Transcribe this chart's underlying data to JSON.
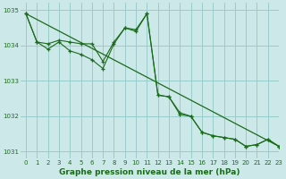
{
  "title": "Graphe pression niveau de la mer (hPa)",
  "bg_color": "#cce8e8",
  "grid_color": "#99cccc",
  "line_color": "#1a6b1a",
  "xlim": [
    -0.5,
    23
  ],
  "ylim": [
    1030.8,
    1035.2
  ],
  "yticks": [
    1031,
    1032,
    1033,
    1034,
    1035
  ],
  "xticks": [
    0,
    1,
    2,
    3,
    4,
    5,
    6,
    7,
    8,
    9,
    10,
    11,
    12,
    13,
    14,
    15,
    16,
    17,
    18,
    19,
    20,
    21,
    22,
    23
  ],
  "series1": {
    "x": [
      0,
      1,
      2,
      3,
      4,
      5,
      6,
      7,
      8,
      9,
      10,
      11,
      12,
      13,
      14,
      15,
      16,
      17,
      18,
      19,
      20,
      21,
      22,
      23
    ],
    "y": [
      1034.9,
      1034.1,
      1033.9,
      1034.1,
      1033.85,
      1033.75,
      1033.6,
      1033.35,
      1034.05,
      1034.5,
      1034.4,
      1034.9,
      1032.6,
      1032.55,
      1032.05,
      1032.0,
      1031.55,
      1031.45,
      1031.4,
      1031.35,
      1031.15,
      1031.2,
      1031.35,
      1031.15
    ]
  },
  "series2": {
    "x": [
      0,
      1,
      2,
      3,
      4,
      5,
      6,
      7,
      8,
      9,
      10,
      11,
      12,
      13,
      14,
      15,
      16,
      17,
      18,
      19,
      20,
      21,
      22,
      23
    ],
    "y": [
      1034.9,
      1034.1,
      1034.05,
      1034.15,
      1034.1,
      1034.05,
      1034.05,
      1033.55,
      1034.1,
      1034.5,
      1034.45,
      1034.9,
      1032.6,
      1032.55,
      1032.1,
      1032.0,
      1031.55,
      1031.45,
      1031.4,
      1031.35,
      1031.15,
      1031.2,
      1031.35,
      1031.15
    ]
  },
  "series3_x": [
    0,
    23
  ],
  "series3_y": [
    1034.9,
    1031.15
  ],
  "ylabel_fontsize": 5.5,
  "xlabel_fontsize": 6.5,
  "tick_fontsize": 5.0
}
